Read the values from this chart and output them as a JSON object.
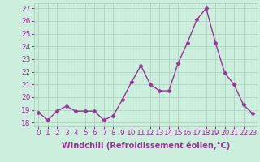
{
  "hours": [
    0,
    1,
    2,
    3,
    4,
    5,
    6,
    7,
    8,
    9,
    10,
    11,
    12,
    13,
    14,
    15,
    16,
    17,
    18,
    19,
    20,
    21,
    22,
    23
  ],
  "values": [
    18.8,
    18.2,
    18.9,
    19.3,
    18.9,
    18.9,
    18.9,
    18.2,
    18.5,
    19.8,
    21.2,
    22.5,
    21.0,
    20.5,
    20.5,
    22.7,
    24.3,
    26.1,
    27.0,
    24.3,
    21.9,
    21.0,
    19.4,
    18.7
  ],
  "line_color": "#993399",
  "marker": "D",
  "markersize": 2.5,
  "linewidth": 1,
  "bg_color": "#cceedd",
  "grid_color": "#aaccbb",
  "xlabel": "Windchill (Refroidissement éolien,°C)",
  "ylabel_ticks": [
    18,
    19,
    20,
    21,
    22,
    23,
    24,
    25,
    26,
    27
  ],
  "ylim": [
    17.7,
    27.4
  ],
  "xlim": [
    -0.5,
    23.5
  ],
  "xlabel_fontsize": 7,
  "tick_fontsize": 6.5,
  "label_color": "#993399"
}
